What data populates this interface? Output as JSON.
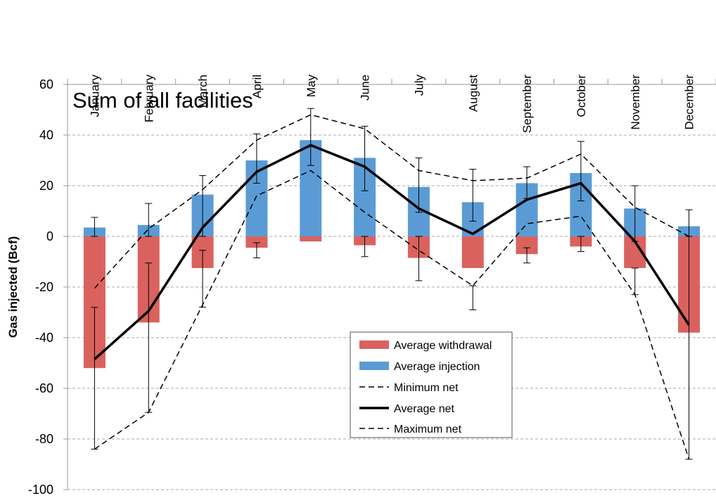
{
  "chart_data": {
    "type": "bar",
    "title": "Sum of all facilities",
    "ylabel": "Gas injected (Bcf)",
    "xlabel": "",
    "ylim": [
      -100,
      60
    ],
    "yticks": [
      60,
      40,
      20,
      0,
      -20,
      -40,
      -60,
      -80,
      -100
    ],
    "grid": true,
    "categories_position": "top",
    "legend_position": "bottom-center",
    "categories": [
      "January",
      "February",
      "March",
      "April",
      "May",
      "June",
      "July",
      "August",
      "September",
      "October",
      "November",
      "December"
    ],
    "series": [
      {
        "name": "Average withdrawal",
        "kind": "bar",
        "color": "#d9625e",
        "values": [
          -52,
          -34,
          -12.5,
          -4.5,
          -2,
          -3.5,
          -8.5,
          -12.5,
          -7,
          -4,
          -12.5,
          -38
        ]
      },
      {
        "name": "Average injection",
        "kind": "bar",
        "color": "#5b9bd5",
        "values": [
          3.5,
          4.5,
          16.5,
          30,
          38,
          31,
          19.5,
          13.5,
          21,
          25,
          11,
          4
        ]
      },
      {
        "name": "Minimum net",
        "kind": "line",
        "style": "dashed",
        "values": [
          -84,
          -69.5,
          -27,
          16,
          26,
          9.5,
          -5.5,
          -19.5,
          5,
          8,
          -23,
          -88
        ]
      },
      {
        "name": "Average net",
        "kind": "line",
        "style": "solid-bold",
        "values": [
          -48.5,
          -29.5,
          3.5,
          25.5,
          36,
          27.5,
          11,
          1,
          14.5,
          21,
          -2,
          -35
        ]
      },
      {
        "name": "Maximum net",
        "kind": "line",
        "style": "dashed",
        "values": [
          -20.5,
          3,
          18.5,
          38,
          48,
          42.5,
          26,
          22,
          23,
          32.5,
          11.5,
          0
        ]
      }
    ],
    "error_bars": {
      "withdrawal": [
        [
          -84,
          -28
        ],
        [
          -69.5,
          -10.5
        ],
        [
          -28,
          -5.5
        ],
        [
          -8.5,
          -2.5
        ],
        null,
        [
          -8,
          0
        ],
        [
          -17.5,
          0
        ],
        [
          -29,
          -19.5
        ],
        [
          -10.5,
          -4.5
        ],
        [
          -6,
          0
        ],
        [
          -23,
          -12.5
        ],
        [
          -88,
          0
        ]
      ],
      "injection": [
        [
          0,
          7.5
        ],
        [
          0,
          13
        ],
        [
          0,
          24
        ],
        [
          21,
          40.5
        ],
        [
          28,
          50.5
        ],
        [
          18,
          43.5
        ],
        [
          9.5,
          31
        ],
        [
          6,
          26.5
        ],
        [
          15,
          27.5
        ],
        [
          14,
          37.5
        ],
        [
          -2,
          20
        ],
        [
          0,
          10.5
        ]
      ]
    },
    "colors": {
      "withdrawal": "#d9625e",
      "injection": "#5b9bd5",
      "grid": "#aaaaaa",
      "line": "#000000"
    }
  }
}
